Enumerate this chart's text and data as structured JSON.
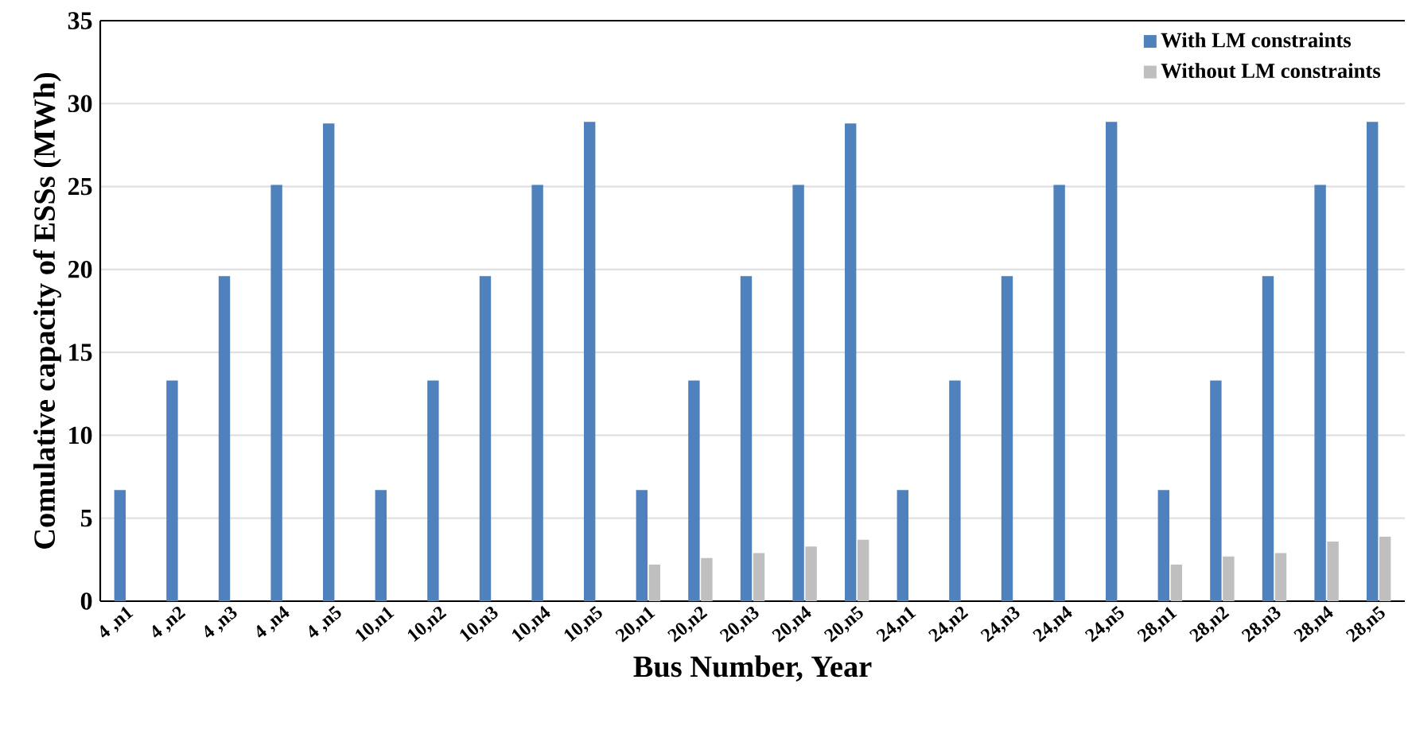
{
  "chart_data": {
    "type": "bar",
    "xlabel": "Bus Number, Year",
    "ylabel": "Comulative capacity of ESSs (MWh)",
    "categories": [
      "4 ,n1",
      "4 ,n2",
      "4 ,n3",
      "4 ,n4",
      "4 ,n5",
      "10,n1",
      "10,n2",
      "10,n3",
      "10,n4",
      "10,n5",
      "20,n1",
      "20,n2",
      "20,n3",
      "20,n4",
      "20,n5",
      "24,n1",
      "24,n2",
      "24,n3",
      "24,n4",
      "24,n5",
      "28,n1",
      "28,n2",
      "28,n3",
      "28,n4",
      "28,n5"
    ],
    "series": [
      {
        "name": "With LM constraints",
        "color": "#4f81bd",
        "values": [
          6.7,
          13.3,
          19.6,
          25.1,
          28.8,
          6.7,
          13.3,
          19.6,
          25.1,
          28.9,
          6.7,
          13.3,
          19.6,
          25.1,
          28.8,
          6.7,
          13.3,
          19.6,
          25.1,
          28.9,
          6.7,
          13.3,
          19.6,
          25.1,
          28.9
        ]
      },
      {
        "name": "Without LM constraints",
        "color": "#bfbfbf",
        "values": [
          null,
          null,
          null,
          null,
          null,
          null,
          null,
          null,
          null,
          null,
          2.2,
          2.6,
          2.9,
          3.3,
          3.7,
          null,
          null,
          null,
          null,
          null,
          2.2,
          2.7,
          2.9,
          3.6,
          3.9
        ]
      }
    ],
    "ylim": [
      0,
      35
    ],
    "yticks": [
      0,
      5,
      10,
      15,
      20,
      25,
      30,
      35
    ],
    "grid": "y",
    "legend": "top right"
  }
}
